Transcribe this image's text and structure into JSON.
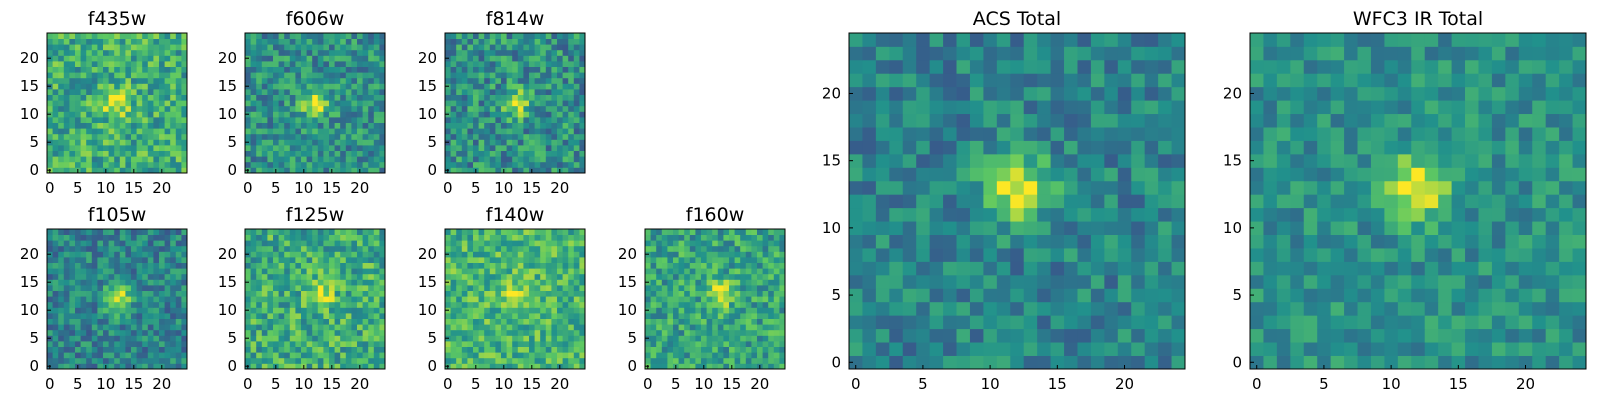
{
  "figure": {
    "colormap": [
      "#440154",
      "#3b528b",
      "#21918c",
      "#5ec962",
      "#fde725"
    ]
  },
  "chart_data": [
    {
      "type": "heatmap",
      "title": "f435w",
      "grid": [
        25,
        25
      ],
      "xlim": [
        0,
        24
      ],
      "ylim": [
        0,
        24
      ],
      "xticks": [
        "0",
        "5",
        "10",
        "15",
        "20"
      ],
      "yticks": [
        "0",
        "5",
        "10",
        "15",
        "20"
      ],
      "peak": {
        "x": 12,
        "y": 12
      },
      "peak_level": 0.98,
      "background_level": 0.62,
      "noise": 0.22
    },
    {
      "type": "heatmap",
      "title": "f606w",
      "grid": [
        25,
        25
      ],
      "xlim": [
        0,
        24
      ],
      "ylim": [
        0,
        24
      ],
      "xticks": [
        "0",
        "5",
        "10",
        "15",
        "20"
      ],
      "yticks": [
        "0",
        "5",
        "10",
        "15",
        "20"
      ],
      "peak": {
        "x": 12,
        "y": 12
      },
      "peak_level": 0.98,
      "background_level": 0.5,
      "noise": 0.2
    },
    {
      "type": "heatmap",
      "title": "f814w",
      "grid": [
        25,
        25
      ],
      "xlim": [
        0,
        24
      ],
      "ylim": [
        0,
        24
      ],
      "xticks": [
        "0",
        "5",
        "10",
        "15",
        "20"
      ],
      "yticks": [
        "0",
        "5",
        "10",
        "15",
        "20"
      ],
      "peak": {
        "x": 12,
        "y": 12
      },
      "peak_level": 0.95,
      "background_level": 0.5,
      "noise": 0.22
    },
    {
      "type": "heatmap",
      "title": "f105w",
      "grid": [
        25,
        25
      ],
      "xlim": [
        0,
        24
      ],
      "ylim": [
        0,
        24
      ],
      "xticks": [
        "0",
        "5",
        "10",
        "15",
        "20"
      ],
      "yticks": [
        "0",
        "5",
        "10",
        "15",
        "20"
      ],
      "peak": {
        "x": 12,
        "y": 12
      },
      "peak_level": 0.98,
      "background_level": 0.45,
      "noise": 0.18
    },
    {
      "type": "heatmap",
      "title": "f125w",
      "grid": [
        25,
        25
      ],
      "xlim": [
        0,
        24
      ],
      "ylim": [
        0,
        24
      ],
      "xticks": [
        "0",
        "5",
        "10",
        "15",
        "20"
      ],
      "yticks": [
        "0",
        "5",
        "10",
        "15",
        "20"
      ],
      "peak": {
        "x": 13,
        "y": 13
      },
      "peak_level": 0.95,
      "background_level": 0.62,
      "noise": 0.22
    },
    {
      "type": "heatmap",
      "title": "f140w",
      "grid": [
        25,
        25
      ],
      "xlim": [
        0,
        24
      ],
      "ylim": [
        0,
        24
      ],
      "xticks": [
        "0",
        "5",
        "10",
        "15",
        "20"
      ],
      "yticks": [
        "0",
        "5",
        "10",
        "15",
        "20"
      ],
      "peak": {
        "x": 12,
        "y": 13
      },
      "peak_level": 0.92,
      "background_level": 0.66,
      "noise": 0.2
    },
    {
      "type": "heatmap",
      "title": "f160w",
      "grid": [
        25,
        25
      ],
      "xlim": [
        0,
        24
      ],
      "ylim": [
        0,
        24
      ],
      "xticks": [
        "0",
        "5",
        "10",
        "15",
        "20"
      ],
      "yticks": [
        "0",
        "5",
        "10",
        "15",
        "20"
      ],
      "peak": {
        "x": 13,
        "y": 13
      },
      "peak_level": 0.95,
      "background_level": 0.58,
      "noise": 0.2
    },
    {
      "type": "heatmap",
      "title": "ACS Total",
      "grid": [
        25,
        25
      ],
      "xlim": [
        0,
        24
      ],
      "ylim": [
        0,
        24
      ],
      "xticks": [
        "0",
        "5",
        "10",
        "15",
        "20"
      ],
      "yticks": [
        "0",
        "5",
        "10",
        "15",
        "20"
      ],
      "peak": {
        "x": 12,
        "y": 13
      },
      "peak_level": 1.0,
      "background_level": 0.45,
      "noise": 0.16
    },
    {
      "type": "heatmap",
      "title": "WFC3 IR Total",
      "grid": [
        25,
        25
      ],
      "xlim": [
        0,
        24
      ],
      "ylim": [
        0,
        24
      ],
      "xticks": [
        "0",
        "5",
        "10",
        "15",
        "20"
      ],
      "yticks": [
        "0",
        "5",
        "10",
        "15",
        "20"
      ],
      "peak": {
        "x": 12,
        "y": 13
      },
      "peak_level": 1.0,
      "background_level": 0.5,
      "noise": 0.14
    }
  ]
}
